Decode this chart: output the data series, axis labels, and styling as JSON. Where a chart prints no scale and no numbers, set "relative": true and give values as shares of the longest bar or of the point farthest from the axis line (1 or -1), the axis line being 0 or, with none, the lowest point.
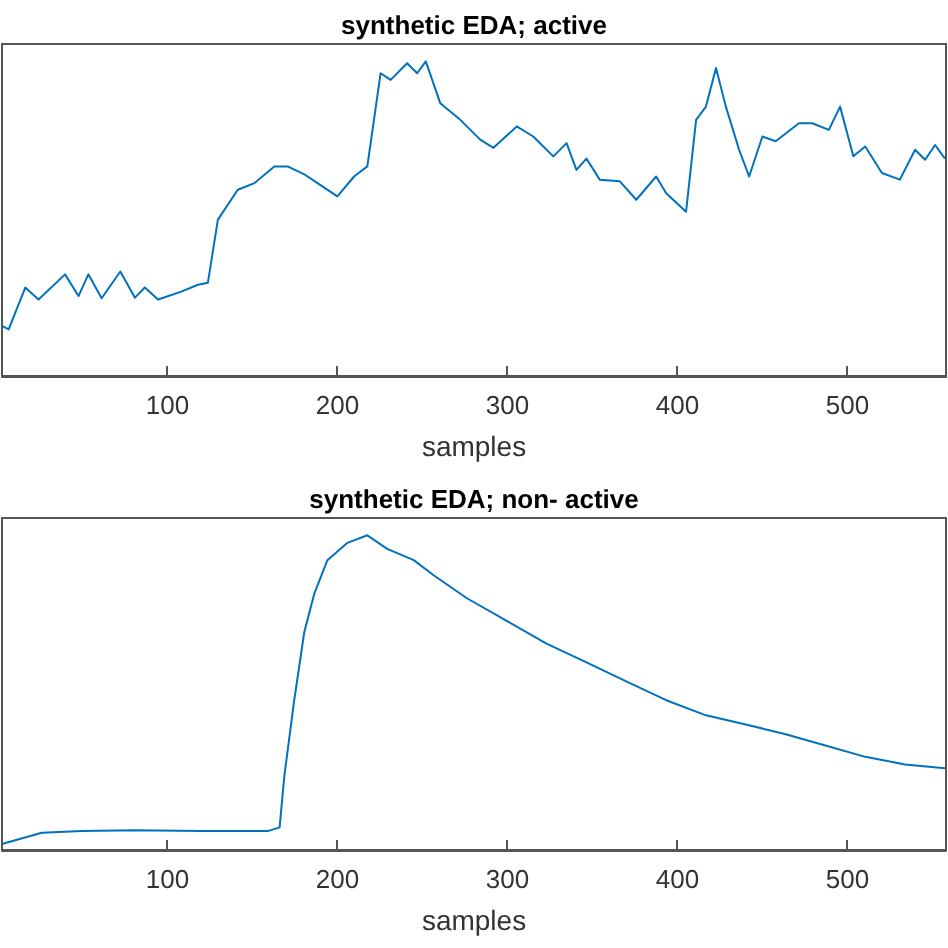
{
  "chart_data": [
    {
      "type": "line",
      "title": "synthetic EDA; active",
      "xlabel": "samples",
      "relative": true,
      "tick_labels": "x",
      "color": "#0072bd",
      "xlim": [
        2.7,
        558
      ],
      "xticks": [
        100,
        200,
        300,
        400,
        500
      ],
      "x": [
        2.7,
        6.6,
        16.4,
        24.2,
        39.8,
        47.7,
        53.5,
        61.3,
        72.3,
        80.9,
        86.7,
        94.5,
        108.2,
        118,
        123.8,
        129.7,
        141.4,
        151.2,
        162.9,
        170.7,
        180.5,
        188.3,
        200,
        209.8,
        217.6,
        225.4,
        231.3,
        241,
        246.9,
        252,
        260.5,
        272.3,
        284,
        291.8,
        305.5,
        315.2,
        327,
        334.8,
        340.6,
        346.5,
        354.3,
        366,
        375.8,
        387.5,
        393.4,
        405.1,
        411,
        416.8,
        422.7,
        428.5,
        436.3,
        442.2,
        450,
        457.8,
        471.5,
        479.3,
        489.1,
        495.7,
        503.5,
        510.5,
        520.3,
        530.9,
        539.8,
        545.7,
        551.6,
        557.4
      ],
      "values": [
        0.159,
        0.148,
        0.281,
        0.243,
        0.323,
        0.254,
        0.323,
        0.247,
        0.332,
        0.249,
        0.281,
        0.243,
        0.268,
        0.29,
        0.296,
        0.497,
        0.592,
        0.613,
        0.666,
        0.666,
        0.641,
        0.613,
        0.571,
        0.634,
        0.666,
        0.962,
        0.941,
        0.994,
        0.962,
        1,
        0.867,
        0.814,
        0.751,
        0.725,
        0.793,
        0.761,
        0.698,
        0.74,
        0.655,
        0.691,
        0.624,
        0.619,
        0.56,
        0.634,
        0.581,
        0.522,
        0.814,
        0.856,
        0.979,
        0.856,
        0.719,
        0.634,
        0.761,
        0.746,
        0.803,
        0.803,
        0.782,
        0.856,
        0.698,
        0.729,
        0.645,
        0.624,
        0.719,
        0.687,
        0.734,
        0.691
      ]
    },
    {
      "type": "line",
      "title": "synthetic EDA; non- active",
      "xlabel": "samples",
      "relative": true,
      "tick_labels": "x",
      "color": "#0072bd",
      "xlim": [
        2.7,
        558
      ],
      "xticks": [
        100,
        200,
        300,
        400,
        500
      ],
      "x": [
        2.7,
        10.5,
        26.1,
        49.6,
        80.9,
        119.9,
        159,
        166,
        168.8,
        174.6,
        180.5,
        186.3,
        194.1,
        205.9,
        217.6,
        229.3,
        244.9,
        256.6,
        276.2,
        299.6,
        323,
        346.5,
        369.9,
        393.4,
        416.8,
        440.2,
        463.7,
        487.1,
        510.5,
        533.9,
        557.4
      ],
      "values": [
        0.019,
        0.031,
        0.055,
        0.06,
        0.063,
        0.06,
        0.06,
        0.072,
        0.236,
        0.476,
        0.692,
        0.813,
        0.921,
        0.976,
        1,
        0.957,
        0.921,
        0.873,
        0.8,
        0.728,
        0.656,
        0.596,
        0.536,
        0.476,
        0.428,
        0.399,
        0.368,
        0.332,
        0.296,
        0.272,
        0.26
      ]
    }
  ]
}
